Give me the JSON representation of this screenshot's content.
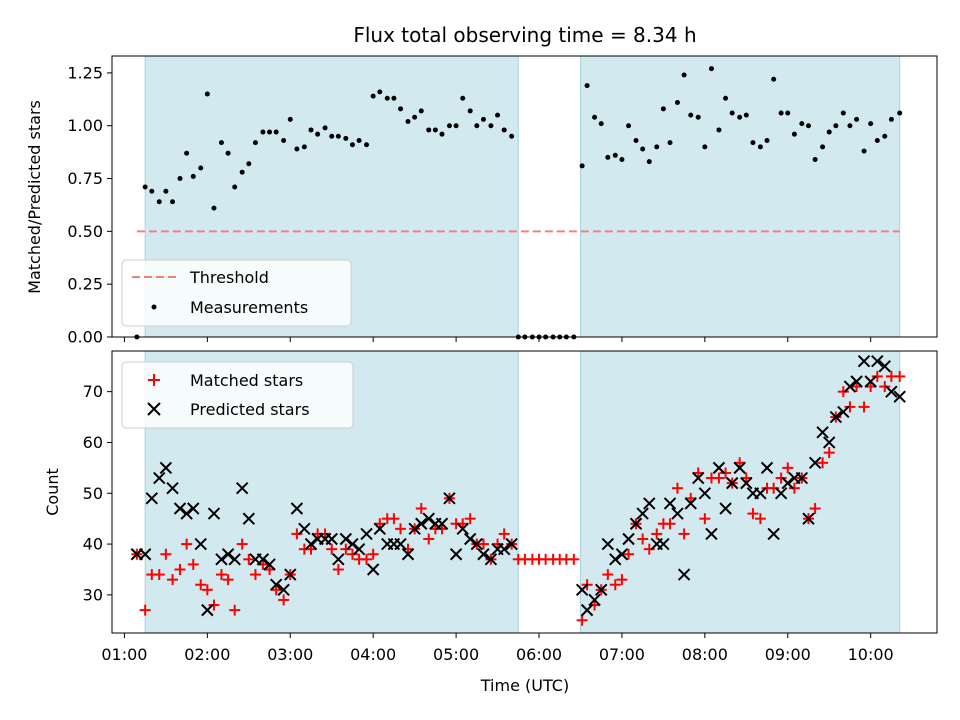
{
  "chart_data": [
    {
      "type": "scatter",
      "title": "Flux total observing time = 8.34 h",
      "xlabel": "",
      "ylabel": "Matched/Predicted stars",
      "ylim": [
        0,
        1.33
      ],
      "xlim": [
        0.85,
        10.8
      ],
      "yticks": [
        0,
        0.25,
        0.5,
        0.75,
        1.0,
        1.25
      ],
      "ytick_labels": [
        "0.00",
        "0.25",
        "0.50",
        "0.75",
        "1.00",
        "1.25"
      ],
      "xticks": [
        1,
        2,
        3,
        4,
        5,
        6,
        7,
        8,
        9,
        10
      ],
      "shaded_intervals": [
        [
          1.25,
          5.75
        ],
        [
          6.5,
          10.35
        ]
      ],
      "shade_color": "#d3e9f0",
      "threshold": {
        "label": "Threshold",
        "value": 0.5,
        "x_range": [
          1.15,
          10.35
        ],
        "color": "#f08080"
      },
      "legend": {
        "position": "lower-left",
        "entries": [
          "Threshold",
          "Measurements"
        ]
      },
      "series": [
        {
          "name": "Measurements",
          "color": "#000000",
          "x": [
            1.15,
            1.25,
            1.33,
            1.42,
            1.5,
            1.58,
            1.67,
            1.75,
            1.83,
            1.92,
            2.0,
            2.08,
            2.17,
            2.25,
            2.33,
            2.42,
            2.5,
            2.58,
            2.67,
            2.75,
            2.83,
            2.92,
            3.0,
            3.08,
            3.17,
            3.25,
            3.33,
            3.42,
            3.5,
            3.58,
            3.67,
            3.75,
            3.83,
            3.92,
            4.0,
            4.08,
            4.17,
            4.25,
            4.33,
            4.42,
            4.5,
            4.58,
            4.67,
            4.75,
            4.83,
            4.92,
            5.0,
            5.08,
            5.17,
            5.25,
            5.33,
            5.42,
            5.5,
            5.58,
            5.67,
            5.75,
            5.83,
            5.92,
            6.0,
            6.08,
            6.17,
            6.25,
            6.33,
            6.42,
            6.52,
            6.58,
            6.67,
            6.75,
            6.83,
            6.92,
            7.0,
            7.08,
            7.17,
            7.25,
            7.33,
            7.42,
            7.5,
            7.58,
            7.67,
            7.75,
            7.83,
            7.92,
            8.0,
            8.08,
            8.17,
            8.25,
            8.33,
            8.42,
            8.5,
            8.58,
            8.67,
            8.75,
            8.83,
            8.92,
            9.0,
            9.08,
            9.17,
            9.25,
            9.33,
            9.42,
            9.5,
            9.58,
            9.67,
            9.75,
            9.83,
            9.92,
            10.0,
            10.08,
            10.17,
            10.25,
            10.35
          ],
          "y": [
            0.0,
            0.71,
            0.69,
            0.64,
            0.69,
            0.64,
            0.75,
            0.87,
            0.76,
            0.8,
            1.15,
            0.61,
            0.92,
            0.87,
            0.71,
            0.78,
            0.82,
            0.92,
            0.97,
            0.97,
            0.97,
            0.93,
            1.03,
            0.89,
            0.9,
            0.98,
            0.96,
            0.99,
            0.95,
            0.95,
            0.94,
            0.91,
            0.93,
            0.91,
            1.14,
            1.16,
            1.13,
            1.13,
            1.08,
            1.02,
            1.04,
            1.07,
            0.98,
            0.98,
            0.96,
            1.0,
            1.0,
            1.13,
            1.07,
            1.0,
            1.03,
            1.0,
            1.05,
            0.98,
            0.95,
            0.0,
            0.0,
            0.0,
            0.0,
            0.0,
            0.0,
            0.0,
            0.0,
            0.0,
            0.81,
            1.19,
            1.04,
            1.01,
            0.85,
            0.86,
            0.84,
            1.0,
            0.93,
            0.89,
            0.83,
            0.9,
            1.08,
            0.92,
            1.11,
            1.24,
            1.05,
            1.04,
            0.9,
            1.27,
            0.98,
            1.13,
            1.06,
            1.04,
            1.05,
            0.92,
            0.9,
            0.93,
            1.22,
            1.06,
            1.06,
            0.96,
            1.01,
            1.0,
            0.84,
            0.9,
            0.97,
            1.0,
            1.06,
            1.0,
            1.03,
            0.88,
            1.01,
            0.93,
            0.95,
            1.03,
            1.06
          ]
        }
      ]
    },
    {
      "type": "scatter",
      "title": "",
      "xlabel": "Time (UTC)",
      "ylabel": "Count",
      "ylim": [
        22.5,
        78
      ],
      "xlim": [
        0.85,
        10.8
      ],
      "yticks": [
        30,
        40,
        50,
        60,
        70
      ],
      "ytick_labels": [
        "30",
        "40",
        "50",
        "60",
        "70"
      ],
      "xticks": [
        1,
        2,
        3,
        4,
        5,
        6,
        7,
        8,
        9,
        10
      ],
      "xtick_labels": [
        "01:00",
        "02:00",
        "03:00",
        "04:00",
        "05:00",
        "06:00",
        "07:00",
        "08:00",
        "09:00",
        "10:00"
      ],
      "shaded_intervals": [
        [
          1.25,
          5.75
        ],
        [
          6.5,
          10.35
        ]
      ],
      "shade_color": "#d3e9f0",
      "legend": {
        "position": "upper-left",
        "entries": [
          "Matched stars",
          "Predicted stars"
        ]
      },
      "series": [
        {
          "name": "Matched stars",
          "marker": "plus",
          "color": "#ff0000",
          "x": [
            1.15,
            1.25,
            1.33,
            1.42,
            1.5,
            1.58,
            1.67,
            1.75,
            1.83,
            1.92,
            2.0,
            2.08,
            2.17,
            2.25,
            2.33,
            2.42,
            2.5,
            2.58,
            2.67,
            2.75,
            2.83,
            2.92,
            3.0,
            3.08,
            3.17,
            3.25,
            3.33,
            3.42,
            3.5,
            3.58,
            3.67,
            3.75,
            3.83,
            3.92,
            4.0,
            4.08,
            4.17,
            4.25,
            4.33,
            4.42,
            4.5,
            4.58,
            4.67,
            4.75,
            4.83,
            4.92,
            5.0,
            5.08,
            5.17,
            5.25,
            5.33,
            5.42,
            5.5,
            5.58,
            5.67,
            5.75,
            5.83,
            5.92,
            6.0,
            6.08,
            6.17,
            6.25,
            6.33,
            6.42,
            6.52,
            6.58,
            6.67,
            6.75,
            6.83,
            6.92,
            7.0,
            7.08,
            7.17,
            7.25,
            7.33,
            7.42,
            7.5,
            7.58,
            7.67,
            7.75,
            7.83,
            7.92,
            8.0,
            8.08,
            8.17,
            8.25,
            8.33,
            8.42,
            8.5,
            8.58,
            8.67,
            8.75,
            8.83,
            8.92,
            9.0,
            9.08,
            9.17,
            9.25,
            9.33,
            9.42,
            9.5,
            9.58,
            9.67,
            9.75,
            9.83,
            9.92,
            10.0,
            10.08,
            10.17,
            10.25,
            10.35
          ],
          "y": [
            38,
            27,
            34,
            34,
            38,
            33,
            35,
            40,
            36,
            32,
            31,
            28,
            34,
            33,
            27,
            40,
            37,
            34,
            36,
            35,
            31,
            29,
            34,
            42,
            39,
            39,
            42,
            42,
            39,
            35,
            39,
            38,
            37,
            37,
            38,
            44,
            45,
            45,
            43,
            39,
            43,
            47,
            41,
            43,
            43,
            49,
            44,
            44,
            45,
            40,
            40,
            37,
            40,
            42,
            40,
            37,
            37,
            37,
            37,
            37,
            37,
            37,
            37,
            37,
            25,
            32,
            28,
            31,
            34,
            32,
            33,
            38,
            44,
            41,
            39,
            42,
            44,
            44,
            51,
            42,
            49,
            54,
            45,
            53,
            53,
            54,
            52,
            56,
            53,
            46,
            45,
            51,
            51,
            53,
            55,
            51,
            53,
            45,
            47,
            56,
            58,
            65,
            70,
            67,
            71,
            67,
            71,
            73,
            71,
            73,
            73
          ]
        },
        {
          "name": "Predicted stars",
          "marker": "x",
          "color": "#000000",
          "x": [
            1.15,
            1.25,
            1.33,
            1.42,
            1.5,
            1.58,
            1.67,
            1.75,
            1.83,
            1.92,
            2.0,
            2.08,
            2.17,
            2.25,
            2.33,
            2.42,
            2.5,
            2.58,
            2.67,
            2.75,
            2.83,
            2.92,
            3.0,
            3.08,
            3.17,
            3.25,
            3.33,
            3.42,
            3.5,
            3.58,
            3.67,
            3.75,
            3.83,
            3.92,
            4.0,
            4.08,
            4.17,
            4.25,
            4.33,
            4.42,
            4.5,
            4.58,
            4.67,
            4.75,
            4.83,
            4.92,
            5.0,
            5.08,
            5.17,
            5.25,
            5.33,
            5.42,
            5.5,
            5.58,
            5.67,
            6.52,
            6.58,
            6.67,
            6.75,
            6.83,
            6.92,
            7.0,
            7.08,
            7.17,
            7.25,
            7.33,
            7.42,
            7.5,
            7.58,
            7.67,
            7.75,
            7.83,
            7.92,
            8.0,
            8.08,
            8.17,
            8.25,
            8.33,
            8.42,
            8.5,
            8.58,
            8.67,
            8.75,
            8.83,
            8.92,
            9.0,
            9.08,
            9.17,
            9.25,
            9.33,
            9.42,
            9.5,
            9.58,
            9.67,
            9.75,
            9.83,
            9.92,
            10.0,
            10.08,
            10.17,
            10.25,
            10.35
          ],
          "y": [
            38,
            38,
            49,
            53,
            55,
            51,
            47,
            46,
            47,
            40,
            27,
            46,
            37,
            38,
            37,
            51,
            45,
            37,
            37,
            36,
            32,
            31,
            34,
            47,
            43,
            40,
            41,
            41,
            41,
            37,
            41,
            40,
            39,
            42,
            35,
            43,
            40,
            40,
            40,
            38,
            43,
            44,
            45,
            44,
            44,
            49,
            38,
            43,
            41,
            40,
            38,
            37,
            39,
            39,
            40,
            31,
            27,
            29,
            31,
            40,
            37,
            38,
            41,
            44,
            46,
            48,
            40,
            40,
            48,
            46,
            34,
            48,
            53,
            50,
            42,
            55,
            47,
            52,
            55,
            52,
            50,
            50,
            55,
            42,
            50,
            52,
            53,
            53,
            45,
            56,
            62,
            60,
            65,
            66,
            71,
            72,
            76,
            72,
            76,
            75,
            70,
            69
          ]
        }
      ]
    }
  ]
}
